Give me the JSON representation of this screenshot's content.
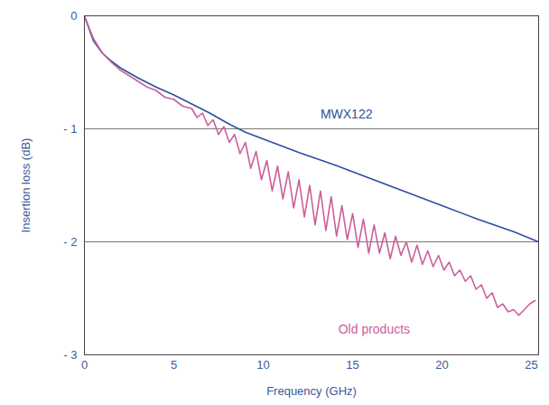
{
  "chart_data": {
    "type": "line",
    "x_label": "Frequency (GHz)",
    "y_label": "Insertion loss (dB)",
    "xlim": [
      0,
      25.4
    ],
    "xticks": [
      0,
      5,
      10,
      15,
      20,
      25
    ],
    "ylim": [
      -3,
      0
    ],
    "yticks": [
      0,
      {
        "value": -1,
        "label": "- 1"
      },
      {
        "value": -2,
        "label": "- 2"
      },
      {
        "value": -3,
        "label": "- 3"
      }
    ],
    "grid": true,
    "series": [
      {
        "name": "MWX122",
        "color": "#2b4f9e",
        "x": [
          0,
          0.5,
          1,
          1.5,
          2,
          3,
          4,
          5,
          6,
          7,
          8,
          9,
          10,
          12,
          14,
          16,
          18,
          20,
          22,
          24,
          25.4
        ],
        "values": [
          0,
          -0.22,
          -0.33,
          -0.4,
          -0.46,
          -0.55,
          -0.63,
          -0.7,
          -0.78,
          -0.86,
          -0.95,
          -1.03,
          -1.09,
          -1.21,
          -1.32,
          -1.44,
          -1.56,
          -1.68,
          -1.8,
          -1.91,
          -2.0
        ]
      },
      {
        "name": "Old products",
        "color": "#cc5f9c",
        "x": [
          0,
          0.5,
          1,
          1.5,
          2,
          2.5,
          3,
          3.5,
          4,
          4.5,
          5,
          5.5,
          6,
          6.3,
          6.6,
          6.9,
          7.2,
          7.5,
          7.8,
          8.1,
          8.4,
          8.7,
          9.0,
          9.3,
          9.6,
          9.9,
          10.2,
          10.5,
          10.8,
          11.1,
          11.4,
          11.7,
          12.0,
          12.3,
          12.6,
          12.9,
          13.2,
          13.5,
          13.8,
          14.1,
          14.4,
          14.7,
          15.0,
          15.3,
          15.6,
          15.9,
          16.2,
          16.5,
          16.8,
          17.1,
          17.4,
          17.7,
          18.0,
          18.3,
          18.6,
          18.9,
          19.2,
          19.5,
          19.8,
          20.1,
          20.4,
          20.7,
          21.0,
          21.3,
          21.6,
          21.9,
          22.2,
          22.5,
          22.8,
          23.1,
          23.4,
          23.7,
          24.0,
          24.3,
          24.6,
          24.9,
          25.2
        ],
        "values": [
          0,
          -0.2,
          -0.33,
          -0.41,
          -0.48,
          -0.53,
          -0.58,
          -0.63,
          -0.66,
          -0.72,
          -0.74,
          -0.8,
          -0.82,
          -0.9,
          -0.86,
          -0.97,
          -0.92,
          -1.05,
          -0.98,
          -1.12,
          -1.05,
          -1.22,
          -1.12,
          -1.35,
          -1.2,
          -1.45,
          -1.28,
          -1.55,
          -1.33,
          -1.62,
          -1.38,
          -1.7,
          -1.45,
          -1.78,
          -1.5,
          -1.85,
          -1.55,
          -1.9,
          -1.6,
          -1.95,
          -1.68,
          -1.98,
          -1.75,
          -2.05,
          -1.8,
          -2.1,
          -1.85,
          -2.1,
          -1.92,
          -2.15,
          -1.95,
          -2.12,
          -2.0,
          -2.18,
          -2.03,
          -2.2,
          -2.08,
          -2.22,
          -2.12,
          -2.25,
          -2.18,
          -2.3,
          -2.25,
          -2.35,
          -2.3,
          -2.42,
          -2.38,
          -2.5,
          -2.45,
          -2.58,
          -2.55,
          -2.62,
          -2.6,
          -2.65,
          -2.6,
          -2.55,
          -2.52
        ]
      }
    ],
    "annotations": [
      {
        "text": "MWX122",
        "x": 13.2,
        "y": -0.87,
        "color": "#2b4f9e"
      },
      {
        "text": "Old products",
        "x": 14.2,
        "y": -2.78,
        "color": "#cc5f9c"
      }
    ]
  }
}
